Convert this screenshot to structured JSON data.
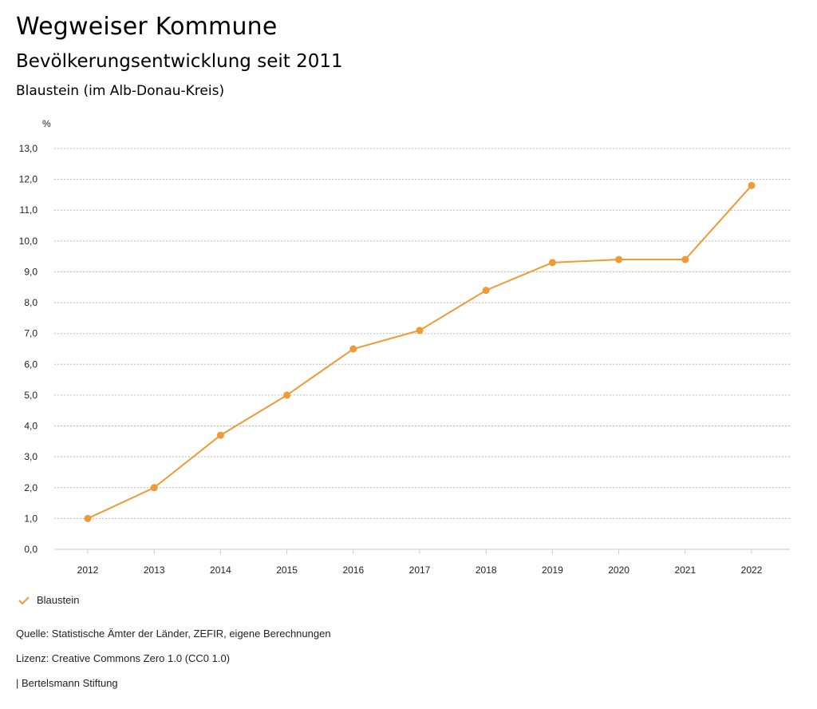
{
  "header": {
    "title": "Wegweiser Kommune",
    "subtitle": "Bevölkerungsentwicklung seit 2011",
    "region": "Blaustein (im Alb-Donau-Kreis)"
  },
  "chart_data": {
    "type": "line",
    "title": "Bevölkerungsentwicklung seit 2011",
    "ylabel": "%",
    "xlabel": "",
    "categories": [
      "2012",
      "2013",
      "2014",
      "2015",
      "2016",
      "2017",
      "2018",
      "2019",
      "2020",
      "2021",
      "2022"
    ],
    "series": [
      {
        "name": "Blaustein",
        "values": [
          1.0,
          2.0,
          3.7,
          5.0,
          6.5,
          7.1,
          8.4,
          9.3,
          9.4,
          9.4,
          11.8
        ]
      }
    ],
    "ylim": [
      0,
      13
    ],
    "yticks": [
      "0,0",
      "1,0",
      "2,0",
      "3,0",
      "4,0",
      "5,0",
      "6,0",
      "7,0",
      "8,0",
      "9,0",
      "10,0",
      "11,0",
      "12,0",
      "13,0"
    ],
    "grid": true,
    "legend_position": "bottom-left"
  },
  "colors": {
    "series": "#ef9a34",
    "grid": "#b8b8b8",
    "axis": "#cccccc"
  },
  "legend": {
    "label": "Blaustein",
    "icon": "checkmark-icon"
  },
  "footer": {
    "source": "Quelle: Statistische Ämter der Länder, ZEFIR, eigene Berechnungen",
    "license": "Lizenz: Creative Commons Zero 1.0 (CC0 1.0)",
    "publisher": "| Bertelsmann Stiftung"
  }
}
